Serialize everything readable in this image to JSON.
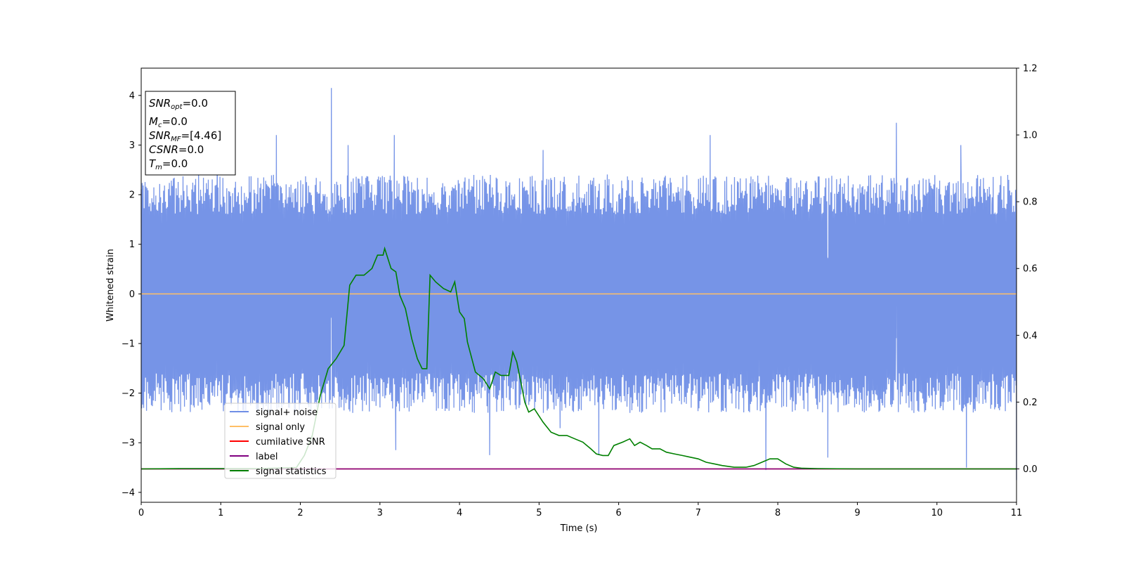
{
  "chart_data": {
    "type": "line",
    "xlabel": "Time (s)",
    "ylabel": "Whitened strain",
    "xlim": [
      0,
      11
    ],
    "ylim_left": [
      -4.2,
      4.55
    ],
    "ylim_right": [
      -0.1,
      1.2
    ],
    "x_ticks": [
      "0",
      "1",
      "2",
      "3",
      "4",
      "5",
      "6",
      "7",
      "8",
      "9",
      "10",
      "11"
    ],
    "y_ticks_left": [
      "−4",
      "−3",
      "−2",
      "−1",
      "0",
      "1",
      "2",
      "3",
      "4"
    ],
    "y_ticks_right": [
      "0.0",
      "0.2",
      "0.4",
      "0.6",
      "0.8",
      "1.0",
      "1.2"
    ],
    "stats_box": {
      "snr_opt": "=0.0",
      "mc": "=0.0",
      "snr_mf": "=[4.46]",
      "csnr": "=0.0",
      "tm": "=0.0"
    },
    "legend": {
      "position": "lower-left",
      "entries": [
        "signal+ noise",
        "signal only",
        "cumilative SNR",
        "label",
        "signal statistics"
      ]
    },
    "series": [
      {
        "name": "signal+ noise",
        "axis": "left",
        "color": "#6f8ee6",
        "x_range": [
          0,
          11
        ],
        "envelope_typical": [
          -2.0,
          2.4
        ],
        "peaks": [
          [
            2.39,
            4.15
          ],
          [
            9.49,
            3.45
          ],
          [
            1.7,
            3.2
          ],
          [
            3.18,
            3.2
          ],
          [
            7.15,
            3.2
          ],
          [
            10.3,
            3.0
          ],
          [
            2.6,
            3.0
          ],
          [
            5.05,
            2.9
          ],
          [
            11.0,
            -3.75
          ],
          [
            10.37,
            -3.5
          ],
          [
            7.85,
            -3.55
          ],
          [
            5.75,
            -3.25
          ],
          [
            4.38,
            -3.25
          ],
          [
            8.63,
            -3.3
          ],
          [
            3.2,
            -3.15
          ]
        ]
      },
      {
        "name": "signal only",
        "axis": "left",
        "color": "#ffbf66",
        "x": [
          0,
          11
        ],
        "y": [
          0,
          0
        ]
      },
      {
        "name": "cumilative SNR",
        "axis": "right",
        "color": "#ff0000",
        "x": [
          0,
          11
        ],
        "y": [
          0,
          0
        ]
      },
      {
        "name": "label",
        "axis": "right",
        "color": "#800080",
        "x": [
          0,
          11
        ],
        "y": [
          0,
          0
        ]
      },
      {
        "name": "signal statistics",
        "axis": "right",
        "color": "#008000",
        "x": [
          0,
          0.5,
          1.0,
          1.5,
          1.95,
          2.05,
          2.15,
          2.25,
          2.35,
          2.45,
          2.55,
          2.62,
          2.7,
          2.8,
          2.9,
          2.97,
          3.04,
          3.06,
          3.14,
          3.2,
          3.25,
          3.32,
          3.4,
          3.47,
          3.53,
          3.59,
          3.63,
          3.7,
          3.8,
          3.89,
          3.94,
          4.0,
          4.06,
          4.1,
          4.2,
          4.3,
          4.38,
          4.45,
          4.52,
          4.57,
          4.62,
          4.67,
          4.72,
          4.78,
          4.82,
          4.87,
          4.94,
          5.05,
          5.15,
          5.25,
          5.35,
          5.45,
          5.55,
          5.65,
          5.72,
          5.8,
          5.87,
          5.94,
          6.05,
          6.14,
          6.2,
          6.27,
          6.35,
          6.42,
          6.52,
          6.6,
          6.7,
          6.8,
          6.9,
          7.0,
          7.1,
          7.2,
          7.3,
          7.45,
          7.6,
          7.7,
          7.8,
          7.9,
          8.0,
          8.1,
          8.2,
          8.3,
          8.5,
          9.0,
          10.0,
          11.0
        ],
        "y": [
          0.0,
          0.001,
          0.001,
          0.001,
          0.004,
          0.04,
          0.1,
          0.22,
          0.3,
          0.33,
          0.37,
          0.55,
          0.58,
          0.58,
          0.6,
          0.64,
          0.64,
          0.66,
          0.6,
          0.59,
          0.52,
          0.48,
          0.39,
          0.33,
          0.3,
          0.3,
          0.58,
          0.56,
          0.54,
          0.53,
          0.56,
          0.47,
          0.45,
          0.38,
          0.29,
          0.27,
          0.24,
          0.29,
          0.28,
          0.28,
          0.28,
          0.35,
          0.32,
          0.25,
          0.2,
          0.17,
          0.18,
          0.14,
          0.11,
          0.1,
          0.1,
          0.09,
          0.08,
          0.06,
          0.045,
          0.04,
          0.04,
          0.07,
          0.08,
          0.09,
          0.07,
          0.08,
          0.07,
          0.06,
          0.06,
          0.05,
          0.045,
          0.04,
          0.035,
          0.03,
          0.02,
          0.015,
          0.01,
          0.005,
          0.005,
          0.01,
          0.02,
          0.03,
          0.03,
          0.015,
          0.005,
          0.002,
          0.001,
          0.0,
          0.0,
          0.0
        ]
      }
    ]
  }
}
